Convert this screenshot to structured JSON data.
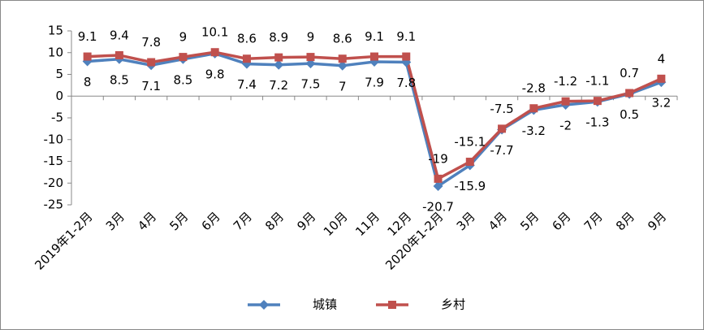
{
  "chart_data": {
    "type": "line",
    "categories": [
      "2019年1-2月",
      "3月",
      "4月",
      "5月",
      "6月",
      "7月",
      "8月",
      "9月",
      "10月",
      "11月",
      "12月",
      "2020年1-2月",
      "3月",
      "4月",
      "5月",
      "6月",
      "7月",
      "8月",
      "9月"
    ],
    "series": [
      {
        "name": "城镇",
        "color": "#4f81bd",
        "marker": "diamond",
        "values": [
          8,
          8.5,
          7.1,
          8.5,
          9.8,
          7.4,
          7.2,
          7.5,
          7,
          7.9,
          7.8,
          -20.7,
          -15.9,
          -7.7,
          -3.2,
          -2,
          -1.3,
          0.5,
          3.2
        ]
      },
      {
        "name": "乡村",
        "color": "#c0504d",
        "marker": "square",
        "values": [
          9.1,
          9.4,
          7.8,
          9,
          10.1,
          8.6,
          8.9,
          9,
          8.6,
          9.1,
          9.1,
          -19,
          -15.1,
          -7.5,
          -2.8,
          -1.2,
          -1.1,
          0.7,
          4
        ]
      }
    ],
    "ylim": [
      -25,
      15
    ],
    "yticks": [
      -25,
      -20,
      -15,
      -10,
      -5,
      0,
      5,
      10,
      15
    ],
    "legend": "bottom"
  }
}
